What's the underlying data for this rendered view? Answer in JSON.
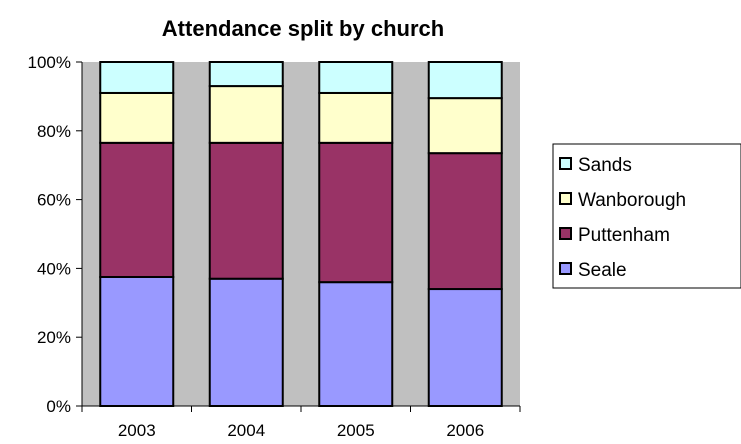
{
  "chart_data": {
    "type": "bar",
    "stacked": "percent",
    "title": "Attendance split by church",
    "xlabel": "",
    "ylabel": "",
    "categories": [
      "2003",
      "2004",
      "2005",
      "2006"
    ],
    "ylim": [
      0,
      100
    ],
    "yticks": [
      "0%",
      "20%",
      "40%",
      "60%",
      "80%",
      "100%"
    ],
    "grid": false,
    "legend": "right",
    "series": [
      {
        "name": "Seale",
        "values": [
          37.5,
          37,
          36,
          34
        ],
        "color": "#9999ff"
      },
      {
        "name": "Puttenham",
        "values": [
          39,
          39.5,
          40.5,
          39.5
        ],
        "color": "#993366"
      },
      {
        "name": "Wanborough",
        "values": [
          14.5,
          16.5,
          14.5,
          16
        ],
        "color": "#ffffcc"
      },
      {
        "name": "Sands",
        "values": [
          9,
          7,
          9,
          10.5
        ],
        "color": "#ccffff"
      }
    ],
    "plot_background": "#c0c0c0"
  }
}
